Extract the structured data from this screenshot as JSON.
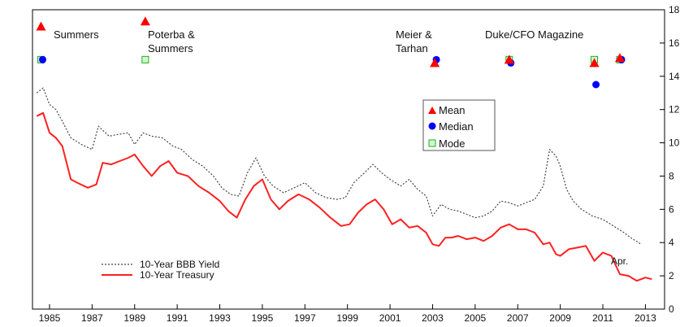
{
  "chart_data": {
    "type": "line",
    "x_ticks": [
      "1985",
      "1987",
      "1989",
      "1991",
      "1993",
      "1995",
      "1997",
      "1999",
      "2001",
      "2003",
      "2005",
      "2007",
      "2009",
      "2011",
      "2013"
    ],
    "y_ticks": [
      0,
      2,
      4,
      6,
      8,
      10,
      12,
      14,
      16,
      18
    ],
    "ylim": [
      0,
      18
    ],
    "xlim": [
      1984.2,
      2013.9
    ],
    "y_axis_side": "right",
    "colors": {
      "treasury": "#ff2020",
      "bbb": "#444444",
      "mean": "#ff0000",
      "median": "#0000ff",
      "mode": "#22aa22"
    },
    "series": [
      {
        "name": "10-Year BBB Yield",
        "style": "dotted",
        "x": [
          1984.4,
          1984.7,
          1985.0,
          1985.3,
          1985.6,
          1986.0,
          1986.5,
          1987.0,
          1987.3,
          1987.8,
          1988.2,
          1988.7,
          1989.0,
          1989.4,
          1989.8,
          1990.3,
          1990.8,
          1991.2,
          1991.7,
          1992.2,
          1992.7,
          1993.1,
          1993.5,
          1993.9,
          1994.3,
          1994.7,
          1995.1,
          1995.5,
          1996.0,
          1996.5,
          1997.0,
          1997.5,
          1998.0,
          1998.5,
          1998.9,
          1999.3,
          1999.8,
          2000.2,
          2000.6,
          2001.0,
          2001.5,
          2001.9,
          2002.3,
          2002.7,
          2003.0,
          2003.4,
          2003.8,
          2004.2,
          2004.6,
          2005.0,
          2005.4,
          2005.8,
          2006.2,
          2006.6,
          2007.0,
          2007.4,
          2007.8,
          2008.2,
          2008.5,
          2008.8,
          2009.0,
          2009.3,
          2009.6,
          2010.0,
          2010.5,
          2011.0,
          2011.5,
          2012.0,
          2012.3,
          2012.8
        ],
        "values": [
          13.0,
          13.3,
          12.3,
          12.0,
          11.3,
          10.3,
          9.9,
          9.6,
          11.0,
          10.4,
          10.5,
          10.6,
          9.9,
          10.6,
          10.4,
          10.3,
          9.8,
          9.6,
          9.0,
          8.6,
          8.0,
          7.3,
          6.9,
          6.8,
          8.2,
          9.1,
          8.0,
          7.4,
          7.0,
          7.3,
          7.6,
          7.0,
          6.7,
          6.6,
          6.7,
          7.6,
          8.2,
          8.7,
          8.2,
          7.8,
          7.4,
          7.8,
          7.2,
          6.8,
          5.6,
          6.3,
          6.0,
          5.9,
          5.7,
          5.5,
          5.6,
          5.9,
          6.5,
          6.4,
          6.2,
          6.4,
          6.6,
          7.4,
          9.6,
          9.2,
          8.6,
          7.2,
          6.5,
          6.0,
          5.6,
          5.4,
          5.0,
          4.6,
          4.3,
          3.9
        ]
      },
      {
        "name": "10-Year Treasury",
        "style": "solid",
        "x": [
          1984.4,
          1984.7,
          1985.0,
          1985.3,
          1985.6,
          1986.0,
          1986.3,
          1986.8,
          1987.2,
          1987.5,
          1987.9,
          1988.3,
          1988.7,
          1989.0,
          1989.4,
          1989.8,
          1990.2,
          1990.6,
          1991.0,
          1991.5,
          1992.0,
          1992.5,
          1993.0,
          1993.4,
          1993.8,
          1994.2,
          1994.6,
          1995.0,
          1995.4,
          1995.8,
          1996.2,
          1996.7,
          1997.2,
          1997.7,
          1998.2,
          1998.7,
          1999.1,
          1999.5,
          1999.9,
          2000.3,
          2000.7,
          2001.1,
          2001.5,
          2001.9,
          2002.3,
          2002.7,
          2003.0,
          2003.3,
          2003.6,
          2003.9,
          2004.2,
          2004.6,
          2005.0,
          2005.4,
          2005.8,
          2006.2,
          2006.6,
          2007.0,
          2007.4,
          2007.8,
          2008.2,
          2008.5,
          2008.8,
          2009.0,
          2009.4,
          2009.8,
          2010.2,
          2010.6,
          2011.0,
          2011.4,
          2011.8,
          2012.2,
          2012.6,
          2013.0,
          2013.3
        ],
        "values": [
          11.6,
          11.8,
          10.6,
          10.3,
          9.8,
          7.8,
          7.6,
          7.3,
          7.5,
          8.8,
          8.7,
          8.9,
          9.1,
          9.3,
          8.6,
          8.0,
          8.6,
          8.9,
          8.2,
          8.0,
          7.4,
          7.0,
          6.5,
          5.9,
          5.5,
          6.6,
          7.4,
          7.8,
          6.6,
          6.0,
          6.5,
          6.9,
          6.6,
          6.1,
          5.5,
          5.0,
          5.1,
          5.8,
          6.3,
          6.6,
          6.0,
          5.1,
          5.4,
          4.9,
          5.0,
          4.6,
          3.9,
          3.8,
          4.3,
          4.3,
          4.4,
          4.2,
          4.3,
          4.1,
          4.4,
          4.9,
          5.1,
          4.8,
          4.8,
          4.6,
          3.9,
          4.0,
          3.3,
          3.2,
          3.6,
          3.7,
          3.8,
          2.9,
          3.4,
          3.2,
          2.1,
          2.0,
          1.7,
          1.9,
          1.8
        ]
      }
    ],
    "survey_points": [
      {
        "x": 1984.6,
        "mean": 17.0,
        "median": 15.0,
        "mode": 15.0
      },
      {
        "x": 1989.5,
        "mean": 17.3,
        "mode": 15.0
      },
      {
        "x": 2003.1,
        "mean": 14.8,
        "median": 15.0
      },
      {
        "x": 2006.6,
        "mean": 15.0,
        "median": 14.8,
        "mode": 15.0
      },
      {
        "x": 2010.6,
        "mean": 14.8,
        "median": 13.5,
        "mode": 15.0
      },
      {
        "x": 2011.8,
        "mean": 15.1,
        "median": 15.0,
        "mode": 15.0
      }
    ],
    "annotations": [
      {
        "text": "Summers"
      },
      {
        "text": "Poterba &"
      },
      {
        "text": "Summers"
      },
      {
        "text": "Meier &"
      },
      {
        "text": "Tarhan"
      },
      {
        "text": "Duke/CFO Magazine"
      },
      {
        "text": "Apr."
      }
    ],
    "legend_markers": [
      "Mean",
      "Median",
      "Mode"
    ],
    "legend_lines": [
      "10-Year BBB Yield",
      "10-Year Treasury"
    ],
    "grid": false
  }
}
